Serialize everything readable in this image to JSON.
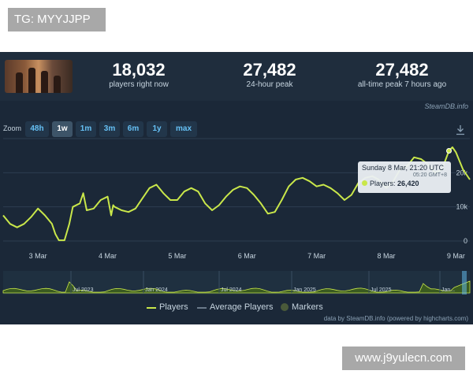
{
  "overlays": {
    "top_tag": "TG: MYYJJPP",
    "bottom_tag": "www.j9yulecn.com"
  },
  "header": {
    "stats": [
      {
        "value": "18,032",
        "label": "players right now"
      },
      {
        "value": "27,482",
        "label": "24-hour peak"
      },
      {
        "value": "27,482",
        "label": "all-time peak 7 hours ago"
      }
    ],
    "source_link": "SteamDB.info"
  },
  "zoom": {
    "label": "Zoom",
    "options": [
      "48h",
      "1w",
      "1m",
      "3m",
      "6m",
      "1y",
      "max"
    ],
    "selected": "1w"
  },
  "tooltip": {
    "title": "Sunday 8 Mar, 21:20 UTC",
    "local_time": "05:20 GMT+8",
    "series": "Players",
    "value": "26,420"
  },
  "legend": {
    "players": "Players",
    "average": "Average Players",
    "markers": "Markers"
  },
  "credits": "data by SteamDB.info (powered by highcharts.com)",
  "colors": {
    "players_line": "#c9e74a",
    "panel_bg": "#1b2838",
    "accent_blue": "#66c0f4"
  },
  "chart_data": {
    "type": "line",
    "series": [
      {
        "name": "Players",
        "x": [
          2.5,
          2.6,
          2.7,
          2.8,
          2.9,
          3.0,
          3.1,
          3.2,
          3.25,
          3.3,
          3.38,
          3.45,
          3.5,
          3.6,
          3.65,
          3.7,
          3.8,
          3.9,
          4.0,
          4.05,
          4.08,
          4.1,
          4.2,
          4.3,
          4.4,
          4.5,
          4.6,
          4.7,
          4.8,
          4.9,
          5.0,
          5.1,
          5.2,
          5.3,
          5.4,
          5.5,
          5.6,
          5.7,
          5.8,
          5.9,
          6.0,
          6.1,
          6.2,
          6.3,
          6.4,
          6.5,
          6.6,
          6.7,
          6.8,
          6.9,
          7.0,
          7.1,
          7.2,
          7.3,
          7.4,
          7.5,
          7.6,
          7.7,
          7.8,
          7.89,
          8.0,
          8.1,
          8.2,
          8.3,
          8.4,
          8.5,
          8.6,
          8.7,
          8.8,
          8.9,
          8.95,
          9.0,
          9.1,
          9.2
        ],
        "values": [
          7500,
          5000,
          4000,
          5000,
          7000,
          9500,
          7500,
          5000,
          2000,
          200,
          200,
          5000,
          10000,
          11000,
          14000,
          9000,
          9500,
          12000,
          13000,
          7500,
          10500,
          10000,
          9000,
          8500,
          9500,
          12500,
          15500,
          16500,
          14000,
          12000,
          12000,
          14500,
          15500,
          14500,
          11000,
          9000,
          10500,
          13000,
          15000,
          16000,
          15500,
          13500,
          11000,
          8000,
          8500,
          12000,
          16000,
          18000,
          18500,
          17500,
          16000,
          16500,
          15500,
          14000,
          12000,
          13500,
          17000,
          18500,
          19000,
          18000,
          15500,
          17500,
          21000,
          22000,
          24500,
          24000,
          22500,
          20000,
          21000,
          26420,
          27482,
          26000,
          21000,
          18000
        ]
      }
    ],
    "x_ticks": [
      "3 Mar",
      "4 Mar",
      "5 Mar",
      "6 Mar",
      "7 Mar",
      "8 Mar",
      "9 Mar"
    ],
    "y_ticks": [
      "0",
      "10k",
      "20k"
    ],
    "ylim": [
      0,
      30000
    ],
    "grid": true,
    "navigator_labels": [
      "Jul 2023",
      "Jan 2024",
      "Jul 2024",
      "Jan 2025",
      "Jul 2025",
      "Jan..."
    ]
  }
}
